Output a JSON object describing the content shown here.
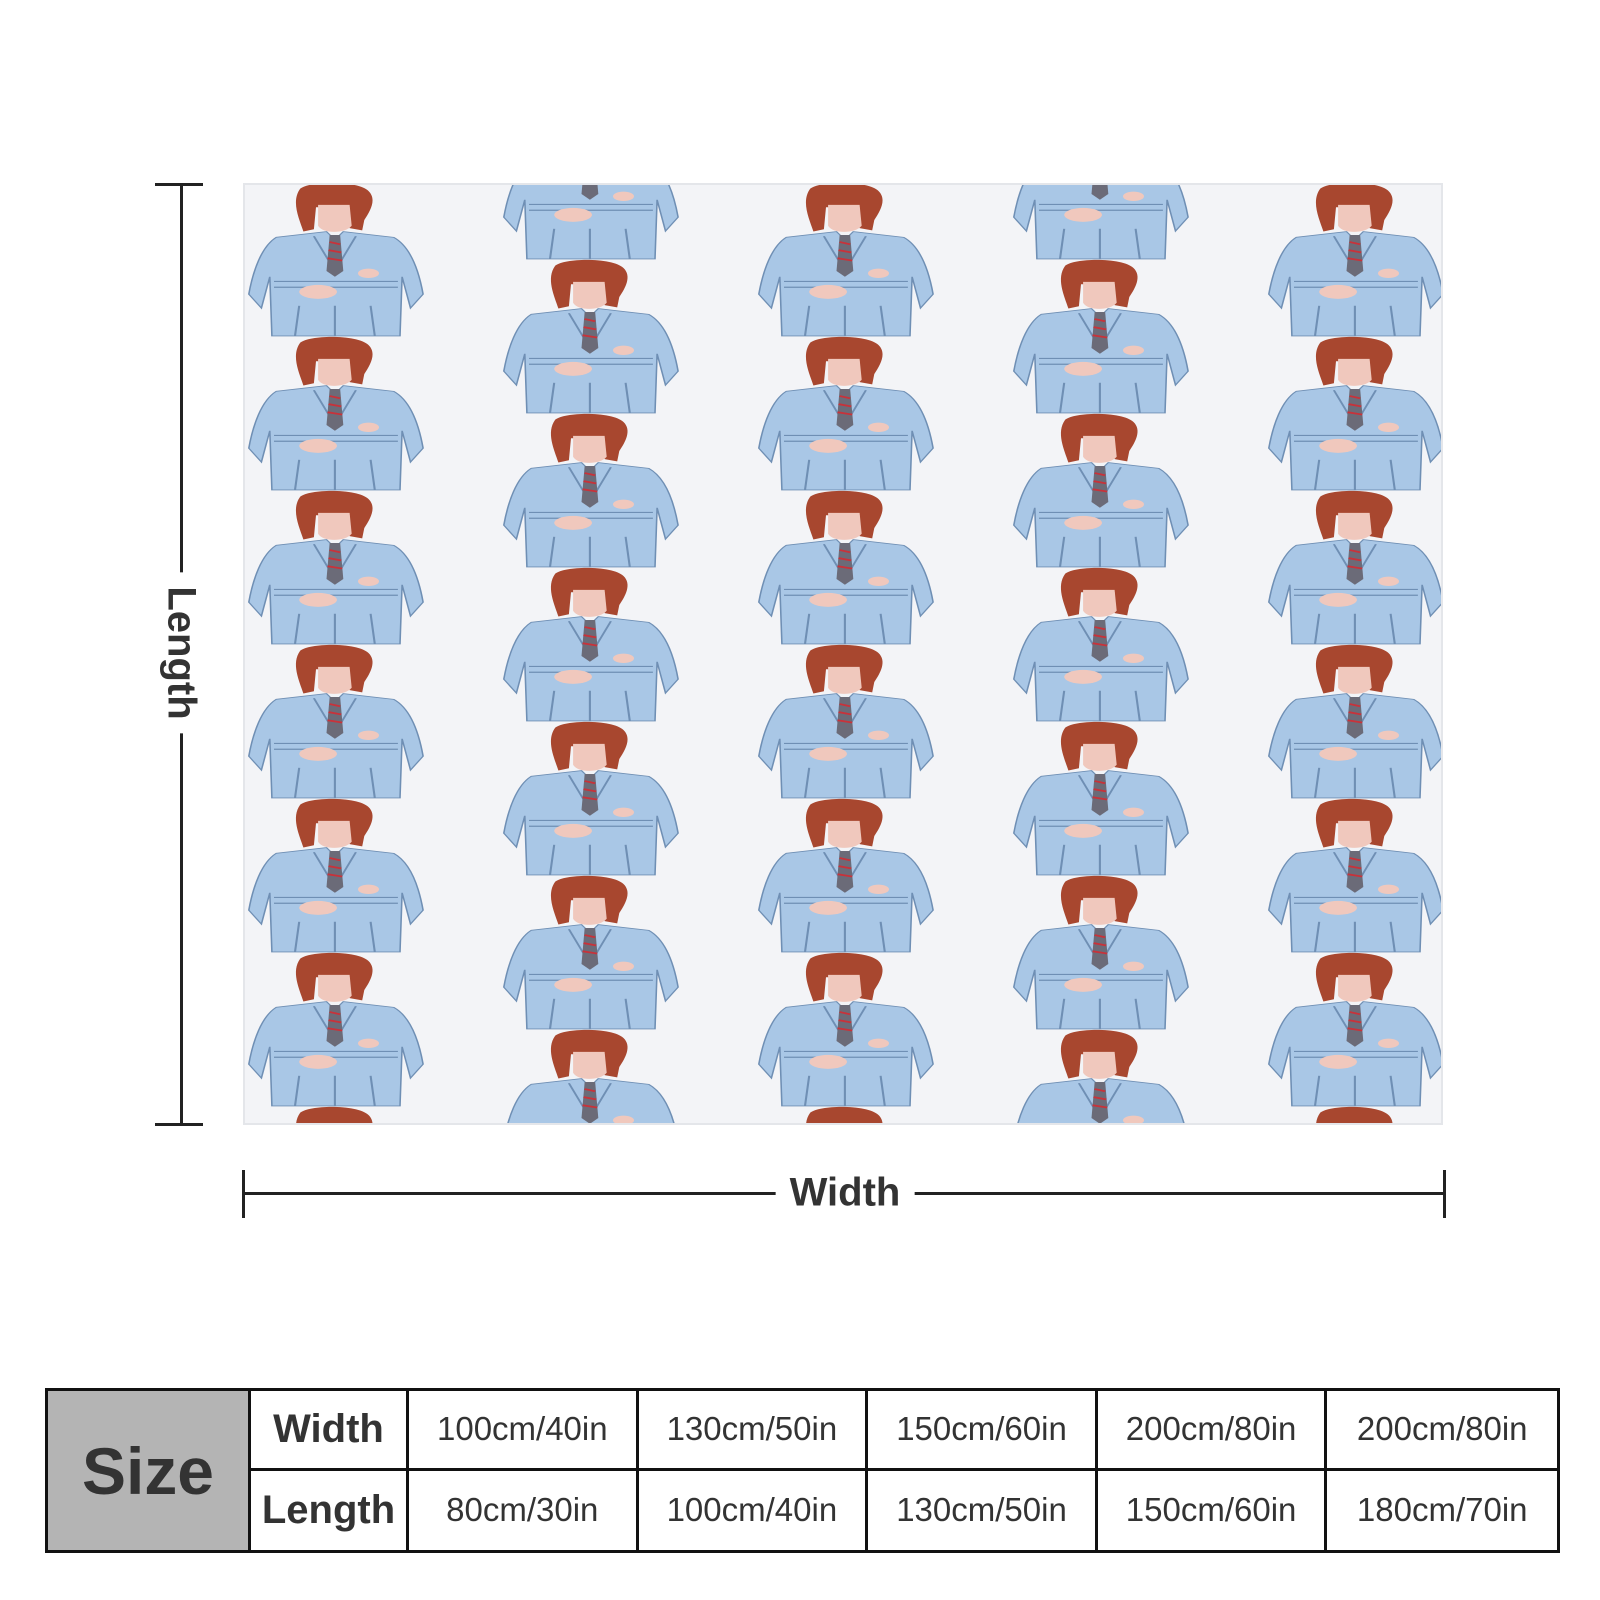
{
  "diagram": {
    "length_label": "Length",
    "width_label": "Width"
  },
  "pattern": {
    "suit_color": "#a9c7e6",
    "hair_color": "#a8472f",
    "skin_color": "#f0c8bd",
    "background_color": "#f3f4f7"
  },
  "size_table": {
    "header": "Size",
    "width_label": "Width",
    "length_label": "Length",
    "widths": [
      "100cm/40in",
      "130cm/50in",
      "150cm/60in",
      "200cm/80in",
      "200cm/80in"
    ],
    "lengths": [
      "80cm/30in",
      "100cm/40in",
      "130cm/50in",
      "150cm/60in",
      "180cm/70in"
    ]
  }
}
